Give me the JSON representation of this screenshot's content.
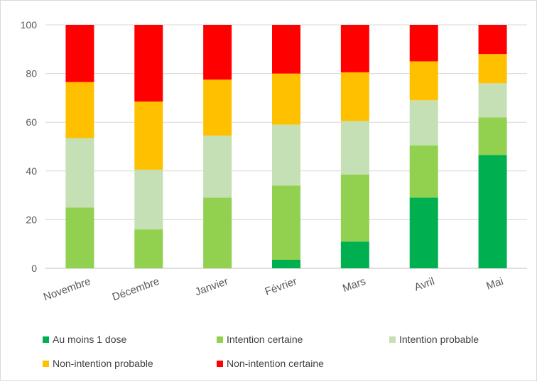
{
  "chart_data": {
    "type": "bar",
    "stacked": true,
    "categories": [
      "Novembre",
      "Décembre",
      "Janvier",
      "Février",
      "Mars",
      "Avril",
      "Mai"
    ],
    "series": [
      {
        "name": "Au moins 1 dose",
        "color": "#00b050",
        "values": [
          0,
          0,
          0,
          3.5,
          11,
          29,
          46.5
        ]
      },
      {
        "name": "Intention certaine",
        "color": "#92d050",
        "values": [
          25,
          16,
          29,
          30.5,
          27.5,
          21.5,
          15.5
        ]
      },
      {
        "name": "Intention probable",
        "color": "#c5e0b4",
        "values": [
          28.5,
          24.5,
          25.5,
          25,
          22,
          18.5,
          14
        ]
      },
      {
        "name": "Non-intention probable",
        "color": "#ffc000",
        "values": [
          23,
          28,
          23,
          21,
          20,
          16,
          12
        ]
      },
      {
        "name": "Non-intention certaine",
        "color": "#ff0000",
        "values": [
          23.5,
          31.5,
          22.5,
          20,
          19.5,
          15,
          12
        ]
      }
    ],
    "yticks": [
      "0",
      "20",
      "40",
      "60",
      "80",
      "100"
    ],
    "ylim": [
      0,
      100
    ],
    "grid": true,
    "legend_position": "bottom"
  }
}
